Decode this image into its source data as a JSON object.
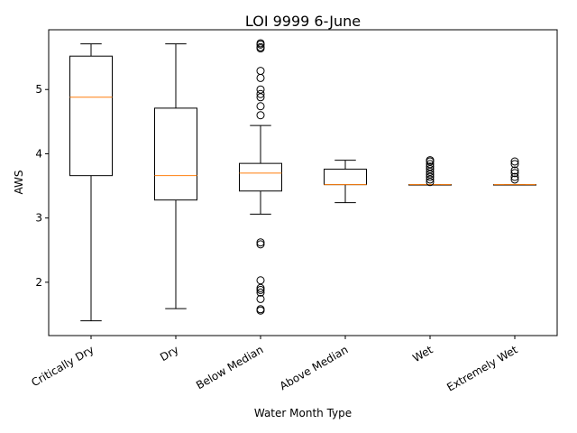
{
  "chart_data": {
    "type": "box",
    "title": "LOI 9999 6-June",
    "xlabel": "Water Month Type",
    "ylabel": "AWS",
    "ylim": [
      1.17,
      5.93
    ],
    "yticks": [
      2,
      3,
      4,
      5
    ],
    "grid": false,
    "categories": [
      "Critically Dry",
      "Dry",
      "Below Median",
      "Above Median",
      "Wet",
      "Extremely Wet"
    ],
    "boxes": [
      {
        "whislo": 1.4,
        "q1": 3.66,
        "med": 4.88,
        "q3": 5.52,
        "whishi": 5.71,
        "fliers": []
      },
      {
        "whislo": 1.59,
        "q1": 3.28,
        "med": 3.66,
        "q3": 4.71,
        "whishi": 5.71,
        "fliers": []
      },
      {
        "whislo": 3.06,
        "q1": 3.42,
        "med": 3.7,
        "q3": 3.85,
        "whishi": 4.44,
        "fliers": [
          5.72,
          5.7,
          5.66,
          5.64,
          5.29,
          5.18,
          5.0,
          4.93,
          4.88,
          4.74,
          4.6,
          2.62,
          2.59,
          2.03,
          1.91,
          1.88,
          1.84,
          1.74,
          1.58,
          1.56
        ]
      },
      {
        "whislo": 3.24,
        "q1": 3.52,
        "med": 3.52,
        "q3": 3.76,
        "whishi": 3.9,
        "fliers": []
      },
      {
        "whislo": 3.52,
        "q1": 3.52,
        "med": 3.52,
        "q3": 3.52,
        "whishi": 3.52,
        "fliers": [
          3.9,
          3.88,
          3.84,
          3.8,
          3.76,
          3.72,
          3.68,
          3.64,
          3.6,
          3.56
        ]
      },
      {
        "whislo": 3.52,
        "q1": 3.52,
        "med": 3.52,
        "q3": 3.52,
        "whishi": 3.52,
        "fliers": [
          3.88,
          3.84,
          3.74,
          3.7,
          3.64,
          3.6
        ]
      }
    ],
    "colors": {
      "box": "#000000",
      "median": "#ff7f0e",
      "flier": "#000000"
    }
  }
}
